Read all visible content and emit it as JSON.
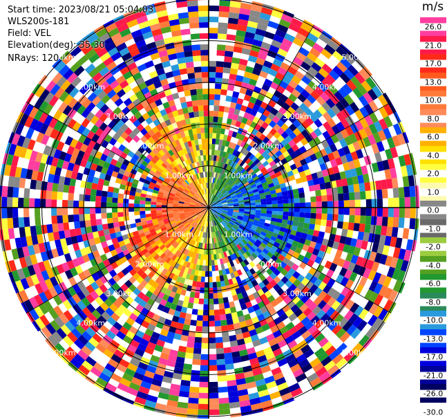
{
  "info": {
    "start_time": "Start time: 2023/08/21 05:04:03",
    "instrument": "WLS200s-181",
    "field": "Field: VEL",
    "elevation": "Elevation(deg): 35.30",
    "nrays": "NRays: 120"
  },
  "chart_data": {
    "type": "heatmap",
    "projection": "polar PPI scan",
    "field": "VEL",
    "units": "m/s",
    "n_rays": 120,
    "elevation_deg": 35.3,
    "range_rings_km": [
      1.0,
      2.0,
      3.0,
      4.0,
      5.0
    ],
    "ring_labels": [
      "1.00km",
      "2.00km",
      "3.00km",
      "4.00km",
      "5.00km"
    ],
    "max_range_km": 7.0,
    "radial_velocity_pattern": {
      "toward_radar_side": "east (negative, blue)",
      "away_from_radar_side": "west (positive, red/orange)",
      "valid_data_max_range_km": 3.0,
      "beyond_valid_range": "noise"
    },
    "colorbar": {
      "unit": "m/s",
      "levels": [
        "26.0",
        "21.0",
        "17.0",
        "13.0",
        "10.0",
        "8.0",
        "6.0",
        "4.0",
        "2.0",
        "1.0",
        "0.0",
        "-1.0",
        "-2.0",
        "-4.0",
        "-6.0",
        "-8.0",
        "-10.0",
        "-13.0",
        "-17.0",
        "-21.0",
        "-26.0",
        "-30.0"
      ],
      "colors": [
        "#ff3d9e",
        "#ff1a4a",
        "#ff2a1a",
        "#ff5a1e",
        "#ff7a3a",
        "#ff8a5a",
        "#ffb000",
        "#ffe000",
        "#ffff40",
        "#fffbb0",
        "#888888",
        "#6a6a6a",
        "#9ccc40",
        "#55a020",
        "#229930",
        "#2a8a5a",
        "#2a9adc",
        "#0044ff",
        "#0000dd",
        "#000099",
        "#000060"
      ]
    }
  }
}
